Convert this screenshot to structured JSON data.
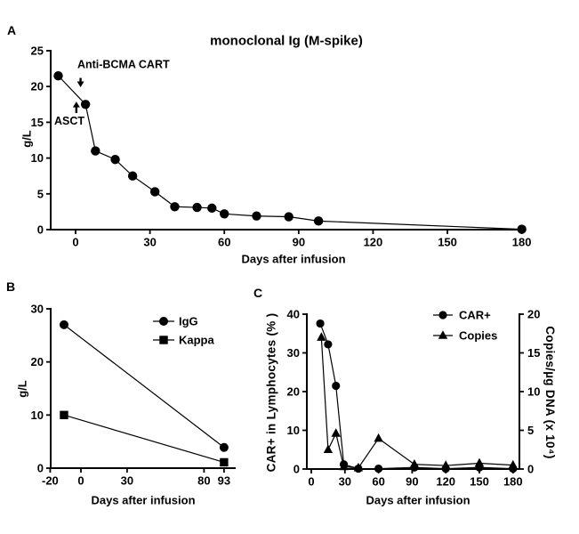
{
  "panels": {
    "a": {
      "label": "A",
      "title": "monoclonal Ig (M-spike)",
      "xlabel": "Days after infusion",
      "ylabel": "g/L"
    },
    "b": {
      "label": "B",
      "xlabel": "Days after infusion",
      "ylabel": "g/L"
    },
    "c": {
      "label": "C",
      "xlabel": "Days after infusion",
      "ylabel_left": "CAR+ in Lymphocytes (% )",
      "ylabel_right": "Copies/µg DNA (x 10⁴)"
    }
  },
  "chart_data": [
    {
      "panel": "A",
      "type": "line",
      "title": "monoclonal Ig (M-spike)",
      "xlabel": "Days after infusion",
      "ylabel": "g/L",
      "xlim": [
        -10,
        181
      ],
      "ylim": [
        0,
        25
      ],
      "xticks": [
        0,
        30,
        60,
        90,
        120,
        150,
        180
      ],
      "yticks": [
        0,
        5,
        10,
        15,
        20,
        25
      ],
      "grid": false,
      "series": [
        {
          "name": "M-spike",
          "marker": "circle",
          "color": "#000000",
          "x": [
            -7,
            4,
            8,
            16,
            23,
            32,
            40,
            49,
            55,
            60,
            73,
            86,
            98,
            180
          ],
          "y": [
            21.5,
            17.5,
            11.0,
            9.8,
            7.5,
            5.3,
            3.2,
            3.1,
            3.0,
            2.2,
            1.9,
            1.8,
            1.2,
            0.05
          ]
        }
      ],
      "annotations": [
        {
          "text": "Anti-BCMA CART",
          "x": 0.7,
          "y": 23.1,
          "anchor": "start",
          "arrow": {
            "x": 2.0,
            "y_from": 21.2,
            "y_to": 19.9
          }
        },
        {
          "text": "ASCT",
          "x": -8.6,
          "y": 15.2,
          "anchor": "start",
          "arrow": {
            "x": 0.3,
            "y_from": 16.3,
            "y_to": 17.9
          }
        }
      ]
    },
    {
      "panel": "B",
      "type": "line",
      "xlabel": "Days after infusion",
      "ylabel": "g/L",
      "xlim": [
        -20,
        100
      ],
      "ylim": [
        0,
        30
      ],
      "xticks": [
        -20,
        0,
        30,
        80,
        93
      ],
      "yticks": [
        0,
        10,
        20,
        30
      ],
      "grid": false,
      "legend_position": "top-right",
      "series": [
        {
          "name": "IgG",
          "marker": "circle",
          "color": "#000000",
          "x": [
            -11,
            93
          ],
          "y": [
            27,
            3.9
          ]
        },
        {
          "name": "Kappa",
          "marker": "square",
          "color": "#000000",
          "x": [
            -11,
            93
          ],
          "y": [
            10,
            1.1
          ]
        }
      ]
    },
    {
      "panel": "C",
      "type": "line",
      "xlabel": "Days after infusion",
      "ylabel_left": "CAR+ in Lymphocytes (% )",
      "ylabel_right": "Copies/µg DNA (x 10⁴)",
      "xlim": [
        -4,
        186
      ],
      "ylim_left": [
        0,
        40
      ],
      "ylim_right": [
        0,
        20
      ],
      "xticks": [
        0,
        30,
        60,
        90,
        120,
        150,
        180
      ],
      "yticks_left": [
        0,
        10,
        20,
        30,
        40
      ],
      "yticks_right": [
        0,
        5,
        10,
        15,
        20
      ],
      "grid": false,
      "legend_position": "top-right",
      "series": [
        {
          "name": "CAR+",
          "marker": "circle",
          "axis": "left",
          "color": "#000000",
          "x": [
            8,
            15,
            22,
            29,
            42,
            60,
            92,
            120,
            150,
            180
          ],
          "y": [
            37.6,
            32.2,
            21.5,
            1.2,
            0.1,
            0.1,
            0.4,
            0.1,
            0.4,
            0.1
          ]
        },
        {
          "name": "Copies",
          "marker": "triangle",
          "axis": "right",
          "color": "#000000",
          "x": [
            9,
            15,
            22,
            29,
            42,
            60,
            92,
            120,
            150,
            180
          ],
          "y": [
            17,
            2.5,
            4.6,
            0.3,
            0.15,
            3.95,
            0.6,
            0.45,
            0.75,
            0.5
          ]
        }
      ]
    }
  ]
}
